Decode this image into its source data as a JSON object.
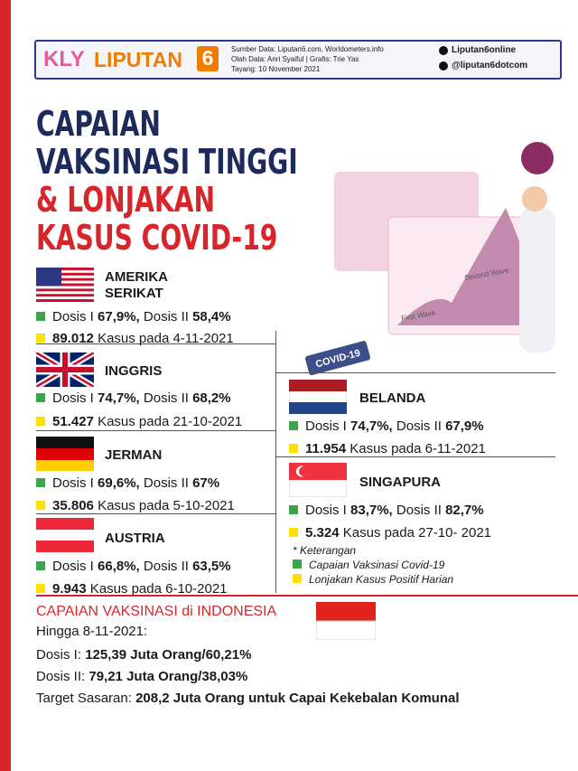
{
  "header": {
    "logo_kly": "KLY",
    "logo_name": "LIPUTAN",
    "logo_num": "6",
    "source": "Sumber Data: Liputan6.com, Worldometers.info",
    "credits": "Olah Data: Anri Syaiful | Grafis: Trie Yas",
    "published": "Tayang: 10 November 2021",
    "facebook": "Liputan6online",
    "twitter": "@liputan6dotcom"
  },
  "title": {
    "lines": [
      "CAPAIAN",
      "VAKSINASI TINGGI"
    ],
    "red_lines": [
      "& LONJAKAN",
      "KASUS COVID-19"
    ]
  },
  "illustration": {
    "sign": "COVID-19",
    "first_wave": "First Wave",
    "second_wave": "Second Wave"
  },
  "countries": [
    {
      "name": "AMERIKA SERIKAT",
      "flag": "us",
      "dose1_label": "Dosis I",
      "dose1": "67,9%,",
      "dose2_label": "Dosis II",
      "dose2": "58,4%",
      "cases": "89.012",
      "cases_text": "Kasus pada 4-11-2021"
    },
    {
      "name": "INGGRIS",
      "flag": "uk",
      "dose1_label": "Dosis I",
      "dose1": "74,7%,",
      "dose2_label": "Dosis II",
      "dose2": "68,2%",
      "cases": "51.427",
      "cases_text": "Kasus pada 21-10-2021"
    },
    {
      "name": "JERMAN",
      "flag": "de",
      "dose1_label": "Dosis I",
      "dose1": "69,6%,",
      "dose2_label": "Dosis II",
      "dose2": "67%",
      "cases": "35.806",
      "cases_text": "Kasus pada 5-10-2021"
    },
    {
      "name": "AUSTRIA",
      "flag": "at",
      "dose1_label": "Dosis I",
      "dose1": "66,8%,",
      "dose2_label": "Dosis II",
      "dose2": "63,5%",
      "cases": "9.943",
      "cases_text": "Kasus pada 6-10-2021"
    },
    {
      "name": "BELANDA",
      "flag": "nl",
      "dose1_label": "Dosis I",
      "dose1": "74,7%,",
      "dose2_label": "Dosis II",
      "dose2": "67,9%",
      "cases": "11.954",
      "cases_text": "Kasus pada 6-11-2021"
    },
    {
      "name": "SINGAPURA",
      "flag": "sg",
      "dose1_label": "Dosis I",
      "dose1": "83,7%,",
      "dose2_label": "Dosis II",
      "dose2": "82,7%",
      "cases": "5.324",
      "cases_text": "Kasus pada 27-10- 2021"
    }
  ],
  "legend": {
    "title": "* Keterangan",
    "green": "Capaian Vaksinasi Covid-19",
    "yellow": "Lonjakan Kasus Positif Harian"
  },
  "indonesia": {
    "title": "CAPAIAN VAKSINASI di INDONESIA",
    "date": "Hingga 8-11-2021:",
    "rows": [
      {
        "label": "Dosis I:",
        "value": "125,39 Juta Orang/60,21%"
      },
      {
        "label": "Dosis II:",
        "value": "79,21 Juta Orang/38,03%"
      },
      {
        "label": "Target Sasaran:",
        "value": "208,2 Juta Orang untuk Capai Kekebalan Komunal"
      }
    ]
  }
}
